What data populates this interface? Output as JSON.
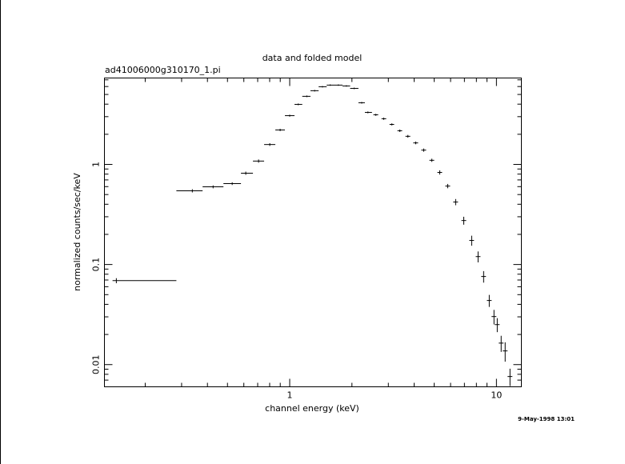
{
  "chart_data": {
    "type": "scatter",
    "title": "data and folded model",
    "subtitle": "ad41006000g310170_1.pi",
    "x_label": "channel energy (keV)",
    "y_label": "normalized counts/sec/keV",
    "annotation": "9-May-1998 13:01",
    "xlog": true,
    "ylog": true,
    "xlim": [
      0.127,
      13.2
    ],
    "ylim": [
      0.006,
      7.3
    ],
    "xticks": [
      1,
      10
    ],
    "yticks": [
      0.01,
      0.1,
      1
    ],
    "xminorticks": [
      0.2,
      0.3,
      0.4,
      0.5,
      0.6,
      0.7,
      0.8,
      0.9,
      2,
      3,
      4,
      5,
      6,
      7,
      8,
      9
    ],
    "yminorticks": [
      0.007,
      0.008,
      0.009,
      0.02,
      0.03,
      0.04,
      0.05,
      0.06,
      0.07,
      0.08,
      0.09,
      0.2,
      0.3,
      0.4,
      0.5,
      0.6,
      0.7,
      0.8,
      0.9,
      2,
      3,
      4,
      5,
      6,
      7
    ],
    "series": [
      {
        "color": "#000000",
        "x": [
          0.145,
          0.338,
          0.426,
          0.527,
          0.613,
          0.707,
          0.801,
          0.899,
          1.0,
          1.1,
          1.21,
          1.32,
          1.44,
          1.57,
          1.72,
          1.88,
          2.05,
          2.23,
          2.39,
          2.61,
          2.85,
          3.12,
          3.41,
          3.73,
          4.07,
          4.45,
          4.87,
          5.32,
          5.81,
          6.35,
          6.95,
          7.59,
          8.15,
          8.67,
          9.23,
          9.73,
          10.09,
          10.54,
          11.02,
          11.63
        ],
        "x_low": [
          0.139,
          0.283,
          0.379,
          0.478,
          0.581,
          0.664,
          0.752,
          0.852,
          0.948,
          1.055,
          1.15,
          1.26,
          1.38,
          1.51,
          1.64,
          1.8,
          1.96,
          2.15,
          2.31,
          2.54,
          2.78,
          3.04,
          3.32,
          3.63,
          3.96,
          4.33,
          4.74,
          5.18,
          5.66,
          6.18,
          6.77,
          7.39,
          7.94,
          8.44,
          8.99,
          9.47,
          9.82,
          10.26,
          10.73,
          11.32
        ],
        "x_high": [
          0.283,
          0.379,
          0.478,
          0.581,
          0.664,
          0.752,
          0.852,
          0.948,
          1.055,
          1.15,
          1.26,
          1.38,
          1.51,
          1.64,
          1.8,
          1.96,
          2.15,
          2.31,
          2.5,
          2.68,
          2.93,
          3.2,
          3.5,
          3.83,
          4.18,
          4.57,
          5.0,
          5.46,
          5.97,
          6.52,
          7.14,
          7.79,
          8.37,
          8.9,
          9.48,
          9.99,
          10.36,
          10.82,
          11.32,
          11.94
        ],
        "values": [
          0.069,
          0.545,
          0.597,
          0.643,
          0.817,
          1.08,
          1.58,
          2.21,
          3.07,
          3.98,
          4.79,
          5.45,
          5.97,
          6.2,
          6.2,
          6.08,
          5.75,
          4.13,
          3.31,
          3.13,
          2.86,
          2.51,
          2.17,
          1.91,
          1.64,
          1.39,
          1.1,
          0.832,
          0.608,
          0.421,
          0.275,
          0.174,
          0.12,
          0.0759,
          0.0437,
          0.0302,
          0.0251,
          0.0164,
          0.0137,
          0.0076
        ],
        "y_err": [
          0.004,
          0.02,
          0.02,
          0.02,
          0.03,
          0.04,
          0.05,
          0.06,
          0.07,
          0.08,
          0.09,
          0.1,
          0.1,
          0.1,
          0.1,
          0.1,
          0.1,
          0.08,
          0.07,
          0.07,
          0.07,
          0.06,
          0.06,
          0.06,
          0.05,
          0.05,
          0.04,
          0.04,
          0.03,
          0.03,
          0.025,
          0.02,
          0.015,
          0.01,
          0.006,
          0.005,
          0.004,
          0.003,
          0.003,
          0.0015
        ]
      }
    ]
  }
}
